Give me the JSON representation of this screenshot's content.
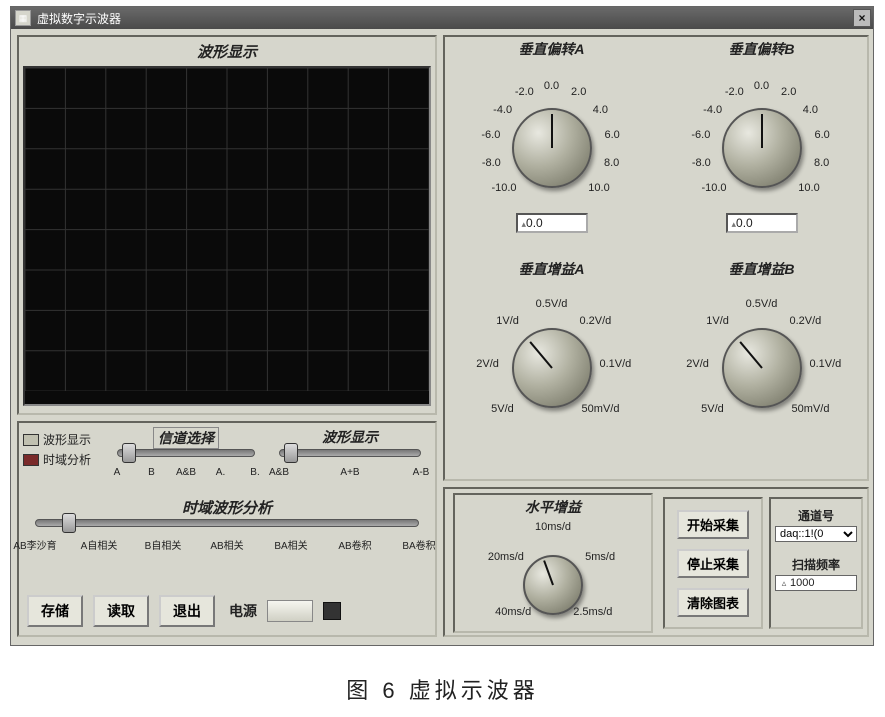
{
  "window": {
    "title": "虚拟数字示波器",
    "close_glyph": "×",
    "icon_glyph": "▦"
  },
  "left_top": {
    "title": "波形显示",
    "grid": {
      "cols": 10,
      "rows": 8,
      "bg": "#0a0a0a",
      "line": "#333333"
    }
  },
  "left_bottom": {
    "legend": [
      {
        "label": "波形显示",
        "color": "#c0c0b0"
      },
      {
        "label": "时域分析",
        "color": "#7a2a2a"
      }
    ],
    "slider1": {
      "label": "信道选择",
      "ticks": [
        "A",
        "B",
        "A&B",
        "A.",
        "B."
      ],
      "thumb_pos": 0.06
    },
    "slider2": {
      "label": "波形显示",
      "ticks": [
        "A&B",
        "A+B",
        "A-B"
      ],
      "thumb_pos": 0.06
    },
    "slider3": {
      "label": "时域波形分析",
      "ticks": [
        "AB李沙育",
        "A自相关",
        "B自相关",
        "AB相关",
        "BA相关",
        "AB卷积",
        "BA卷积"
      ],
      "thumb_pos": 0.04
    },
    "buttons": {
      "save": "存储",
      "load": "读取",
      "exit": "退出"
    },
    "power_label": "电源"
  },
  "knobs": {
    "offsetA": {
      "title": "垂直偏转A",
      "ticks": [
        "-10.0",
        "-8.0",
        "-6.0",
        "-4.0",
        "-2.0",
        "0.0",
        "2.0",
        "4.0",
        "6.0",
        "8.0",
        "10.0"
      ],
      "value": "0.0",
      "pointer_deg": 0
    },
    "offsetB": {
      "title": "垂直偏转B",
      "ticks": [
        "-10.0",
        "-8.0",
        "-6.0",
        "-4.0",
        "-2.0",
        "0.0",
        "2.0",
        "4.0",
        "6.0",
        "8.0",
        "10.0"
      ],
      "value": "0.0",
      "pointer_deg": 0
    },
    "gainA": {
      "title": "垂直增益A",
      "ticks": [
        "5V/d",
        "2V/d",
        "1V/d",
        "0.5V/d",
        "0.2V/d",
        "0.1V/d",
        "50mV/d"
      ],
      "value": null,
      "pointer_deg": -40
    },
    "gainB": {
      "title": "垂直增益B",
      "ticks": [
        "5V/d",
        "2V/d",
        "1V/d",
        "0.5V/d",
        "0.2V/d",
        "0.1V/d",
        "50mV/d"
      ],
      "value": null,
      "pointer_deg": -40
    },
    "hgain": {
      "title": "水平增益",
      "ticks": [
        "40ms/d",
        "20ms/d",
        "10ms/d",
        "5ms/d",
        "2.5ms/d"
      ],
      "value": null,
      "pointer_deg": -20
    }
  },
  "right_bottom": {
    "buttons": {
      "start": "开始采集",
      "stop": "停止采集",
      "clear": "清除图表"
    },
    "channel_label": "通道号",
    "channel_value": "daq::1!(0",
    "rate_label": "扫描频率",
    "rate_value": "1000"
  },
  "caption": "图 6  虚拟示波器",
  "style": {
    "panel_bg": "#d6d6cc",
    "border_inset": "#b8b8ac",
    "knob_size": 80,
    "knob_radius_ticks": 62
  }
}
